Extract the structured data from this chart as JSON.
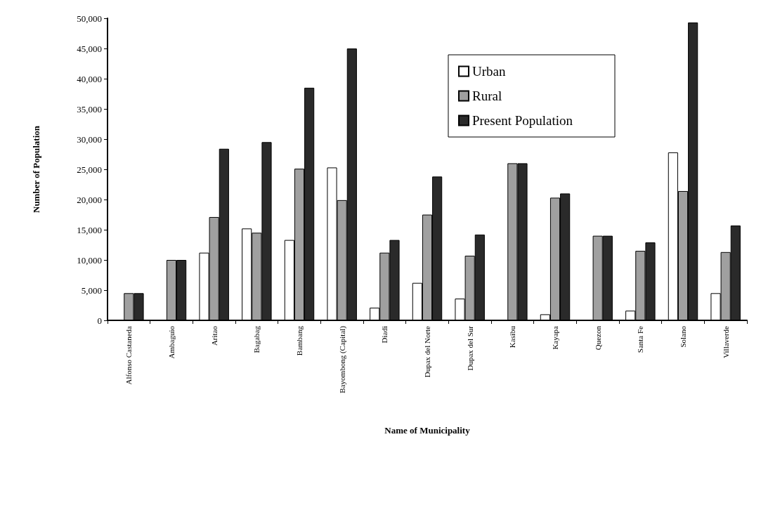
{
  "chart_data": {
    "type": "bar",
    "xlabel": "Name of Municipality",
    "ylabel": "Number of Population",
    "categories": [
      "Alfonso Castaneda",
      "Ambaguio",
      "Aritao",
      "Bagabag",
      "Bambang",
      "Bayombong (Capital)",
      "Diadi",
      "Dupax del Norte",
      "Dupax del Sur",
      "Kasibu",
      "Kayapa",
      "Quezon",
      "Santa Fe",
      "Solano",
      "Villaverde"
    ],
    "series": [
      {
        "name": "Urban",
        "color": "#ffffff",
        "values": [
          0,
          0,
          11200,
          15200,
          13300,
          25300,
          2100,
          6200,
          3600,
          0,
          1000,
          0,
          1600,
          27800,
          4500
        ]
      },
      {
        "name": "Rural",
        "color": "#a0a0a0",
        "values": [
          4500,
          10000,
          17100,
          14500,
          25100,
          19900,
          11200,
          17500,
          10700,
          26000,
          20300,
          14000,
          11500,
          21400,
          11300
        ]
      },
      {
        "name": "Present Population",
        "color": "#2a2a2a",
        "values": [
          4500,
          10000,
          28400,
          29500,
          38500,
          45000,
          13300,
          23800,
          14200,
          26000,
          21000,
          14000,
          12900,
          49300,
          15700
        ]
      }
    ],
    "ylim": [
      0,
      50000
    ],
    "yticks": [
      0,
      {
        "value": 5000,
        "label": "5,000"
      },
      {
        "value": 10000,
        "label": "10,000"
      },
      {
        "value": 15000,
        "label": "15,000"
      },
      {
        "value": 20000,
        "label": "20,000"
      },
      {
        "value": 25000,
        "label": "25,000"
      },
      {
        "value": 30000,
        "label": "30,000"
      },
      {
        "value": 35000,
        "label": "35,000"
      },
      {
        "value": 40000,
        "label": "40,000"
      },
      {
        "value": 45000,
        "label": "45,000"
      },
      {
        "value": 50000,
        "label": "50,000"
      }
    ],
    "grid": false,
    "legend": "top right"
  }
}
